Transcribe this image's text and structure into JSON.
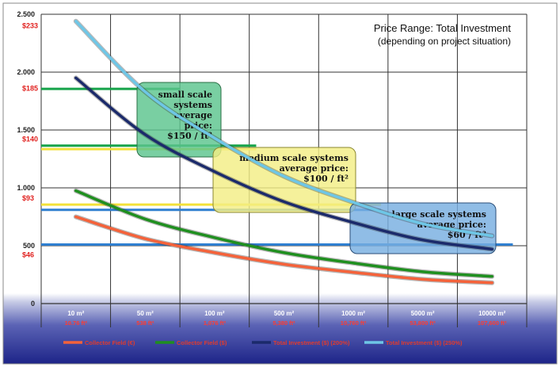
{
  "chart_data": {
    "type": "line",
    "title": "Price Range: Total Investment",
    "subtitle": "(depending on project situation)",
    "categories": [
      "10 m²",
      "50 m²",
      "100 m²",
      "500 m²",
      "1000 m²",
      "5000 m²",
      "10000 m²"
    ],
    "categories_ft": [
      "10.76 ft²",
      "538 ft²",
      "1,076 ft²",
      "5,380 ft²",
      "10,760 ft²",
      "53,800 ft²",
      "107,600 ft²"
    ],
    "ylim": [
      0,
      2500
    ],
    "y_ticks": [
      {
        "label": "2.500",
        "value": 2500
      },
      {
        "label": "2.000",
        "value": 2000
      },
      {
        "label": "1.500",
        "value": 1500
      },
      {
        "label": "1.000",
        "value": 1000
      },
      {
        "label": "500",
        "value": 500
      },
      {
        "label": "0",
        "value": 0
      }
    ],
    "y_price_labels": [
      {
        "label": "$233",
        "value": 2400
      },
      {
        "label": "$185",
        "value": 1860
      },
      {
        "label": "$140",
        "value": 1420
      },
      {
        "label": "$93",
        "value": 910
      },
      {
        "label": "$46",
        "value": 420
      }
    ],
    "series": [
      {
        "name": "Collector Field (€)",
        "color": "#f4623a",
        "values": [
          750,
          560,
          440,
          340,
          270,
          210,
          180
        ]
      },
      {
        "name": "Collector Field ($)",
        "color": "#1f8f1f",
        "values": [
          975,
          730,
          570,
          440,
          350,
          275,
          235
        ]
      },
      {
        "name": "Total Investment ($) (200%)",
        "color": "#1b2a6b",
        "values": [
          1950,
          1460,
          1140,
          880,
          700,
          550,
          470
        ]
      },
      {
        "name": "Total Investment ($) (250%)",
        "color": "#6ec6e6",
        "values": [
          2440,
          1830,
          1430,
          1100,
          875,
          690,
          585
        ]
      }
    ],
    "reference_lines": [
      {
        "value": 1855,
        "color": "#16a34a",
        "x_end": 1.5
      },
      {
        "value": 1365,
        "color": "#16a34a",
        "x_end": 2.6
      },
      {
        "value": 1335,
        "color": "#f2e13a",
        "x_end": 2.6
      },
      {
        "value": 855,
        "color": "#f2e13a",
        "x_end": 4.4
      },
      {
        "value": 810,
        "color": "#2f7fd0",
        "x_end": 4.4
      },
      {
        "value": 510,
        "color": "#2f7fd0",
        "x_end": 6.3
      }
    ],
    "annotations": [
      {
        "lines": [
          "small scale",
          "systems",
          "average",
          "price:",
          "$150 / ft²"
        ],
        "fill": "#5cc48e",
        "stroke": "#2b6f46"
      },
      {
        "lines": [
          "medium scale systems",
          "average price:",
          "$100 / ft²"
        ],
        "fill": "#f3ee85",
        "stroke": "#8a8730"
      },
      {
        "lines": [
          "large scale systems",
          "average price:",
          "$60 / ft²"
        ],
        "fill": "#78aee0",
        "stroke": "#2b4e78"
      }
    ],
    "grid": true,
    "legend_position": "bottom"
  }
}
